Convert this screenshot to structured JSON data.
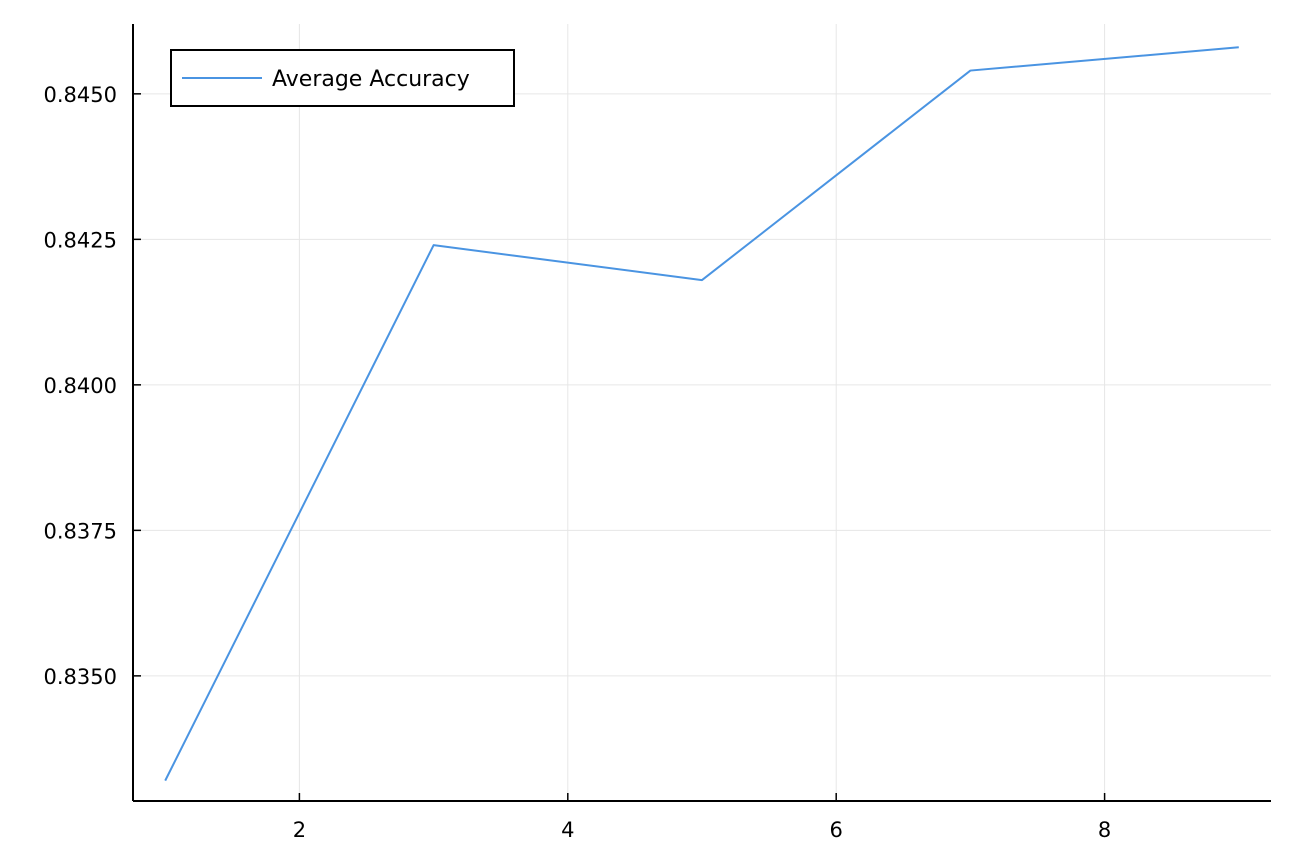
{
  "chart_data": {
    "type": "line",
    "title": "",
    "xlabel": "",
    "ylabel": "",
    "xlim": [
      0.76,
      9.24
    ],
    "ylim": [
      0.83285,
      0.8462
    ],
    "x_ticks": [
      2,
      4,
      6,
      8
    ],
    "x_tick_labels": [
      "2",
      "4",
      "6",
      "8"
    ],
    "y_ticks": [
      0.835,
      0.8375,
      0.84,
      0.8425,
      0.845
    ],
    "y_tick_labels": [
      "0.8350",
      "0.8375",
      "0.8400",
      "0.8425",
      "0.8450"
    ],
    "grid": true,
    "legend_position": "top-left",
    "series": [
      {
        "name": "Average Accuracy",
        "color": "#4a94e2",
        "x": [
          1,
          3,
          5,
          7,
          9
        ],
        "y": [
          0.8332,
          0.8424,
          0.8418,
          0.8454,
          0.8458
        ]
      }
    ]
  }
}
